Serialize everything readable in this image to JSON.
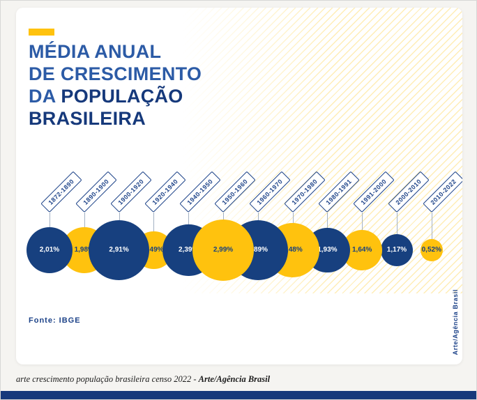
{
  "card": {
    "title_line1": "MÉDIA ANUAL",
    "title_line2": "DE CRESCIMENTO",
    "title_line3_prefix": "DA ",
    "title_line3_bold": "POPULAÇÃO",
    "title_line4_bold": "BRASILEIRA",
    "source": "Fonte: IBGE",
    "credit": "Arte/Agência Brasil"
  },
  "caption": {
    "regular": "arte crescimento população brasileira censo 2022 - ",
    "bold": "Arte/Agência Brasil"
  },
  "colors": {
    "dark_blue": "#16397b",
    "bubble_blue": "#17407f",
    "yellow": "#ffc20e",
    "label_blue": "#1c4288",
    "text_on_yellow": "#17407f",
    "text_on_blue": "#ffffff"
  },
  "chart_data": {
    "type": "bubble",
    "title": "Média anual de crescimento da população brasileira (%)",
    "unit": "%",
    "categories": [
      "1872-1890",
      "1890-1900",
      "1900-1920",
      "1920-1940",
      "1940-1950",
      "1950-1960",
      "1960-1970",
      "1970-1980",
      "1980-1991",
      "1991-2000",
      "2000-2010",
      "2010-2022"
    ],
    "values": [
      2.01,
      1.98,
      2.91,
      1.49,
      2.39,
      2.99,
      2.89,
      2.48,
      1.93,
      1.64,
      1.17,
      0.52
    ],
    "value_labels": [
      "2,01%",
      "1,98%",
      "2,91%",
      "1,49%",
      "2,39%",
      "2,99%",
      "2,89%",
      "2,48%",
      "1,93%",
      "1,64%",
      "1,17%",
      "0,52%"
    ],
    "colors_alternate": [
      "#17407f",
      "#ffc20e"
    ],
    "legend": "none",
    "notes": "bubble size proportional to growth rate; colors alternate dark blue / yellow"
  }
}
